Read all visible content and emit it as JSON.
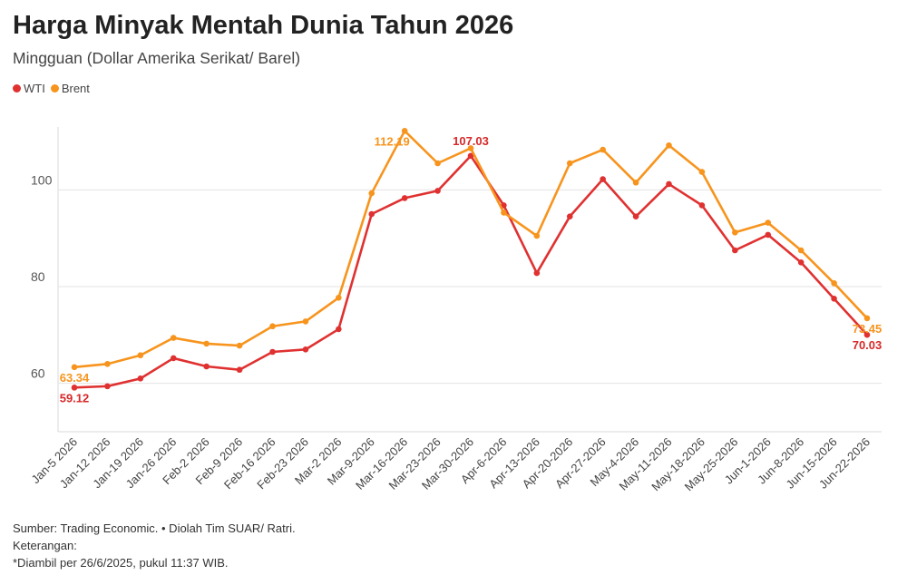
{
  "header": {
    "title": "Harga Minyak Mentah Dunia Tahun 2026",
    "subtitle": "Mingguan (Dollar Amerika Serikat/ Barel)"
  },
  "legend": [
    {
      "name": "WTI",
      "color": "#e03131"
    },
    {
      "name": "Brent",
      "color": "#f7941d"
    }
  ],
  "footer": {
    "source": "Sumber: Trading Economic. • Diolah Tim SUAR/ Ratri.",
    "notes_label": "Keterangan:",
    "note": "*Diambil per 26/6/2025, pukul 11:37 WIB."
  },
  "chart_data": {
    "type": "line",
    "title": "Harga Minyak Mentah Dunia Tahun 2026",
    "subtitle": "Mingguan (Dollar Amerika Serikat/ Barel)",
    "xlabel": "",
    "ylabel": "",
    "ylim": [
      50,
      113
    ],
    "yticks": [
      60,
      80,
      100
    ],
    "grid": true,
    "legend_position": "top-left",
    "categories": [
      "Jan-5 2026",
      "Jan-12 2026",
      "Jan-19 2026",
      "Jan-26 2026",
      "Feb-2 2026",
      "Feb-9 2026",
      "Feb-16 2026",
      "Feb-23 2026",
      "Mar-2 2026",
      "Mar-9-2026",
      "Mar-16-2026",
      "Mar-23-2026",
      "Mar-30-2026",
      "Apr-6-2026",
      "Apr-13-2026",
      "Apr-20-2026",
      "Apr-27-2026",
      "May-4-2026",
      "May-11-2026",
      "May-18-2026",
      "May-25-2026",
      "Jun-1-2026",
      "Jun-8-2026",
      "Jun-15-2026",
      "Jun-22-2026"
    ],
    "series": [
      {
        "name": "WTI",
        "color": "#e03131",
        "values": [
          59.12,
          59.4,
          61.0,
          65.2,
          63.5,
          62.8,
          66.5,
          67.0,
          71.2,
          95.0,
          98.3,
          99.8,
          107.03,
          96.8,
          82.8,
          94.5,
          102.2,
          94.5,
          101.2,
          96.8,
          87.5,
          90.7,
          85.0,
          77.5,
          70.03
        ],
        "labels": [
          {
            "index": 0,
            "text": "59.12"
          },
          {
            "index": 12,
            "text": "107.03"
          },
          {
            "index": 24,
            "text": "70.03"
          }
        ]
      },
      {
        "name": "Brent",
        "color": "#f7941d",
        "values": [
          63.34,
          64.0,
          65.8,
          69.4,
          68.2,
          67.8,
          71.8,
          72.8,
          77.7,
          99.3,
          112.19,
          105.5,
          108.6,
          95.3,
          90.5,
          105.5,
          108.3,
          101.5,
          109.2,
          103.7,
          91.2,
          93.2,
          87.5,
          80.7,
          73.45
        ],
        "labels": [
          {
            "index": 0,
            "text": "63.34"
          },
          {
            "index": 10,
            "text": "112.19"
          },
          {
            "index": 24,
            "text": "73.45"
          }
        ]
      }
    ]
  }
}
